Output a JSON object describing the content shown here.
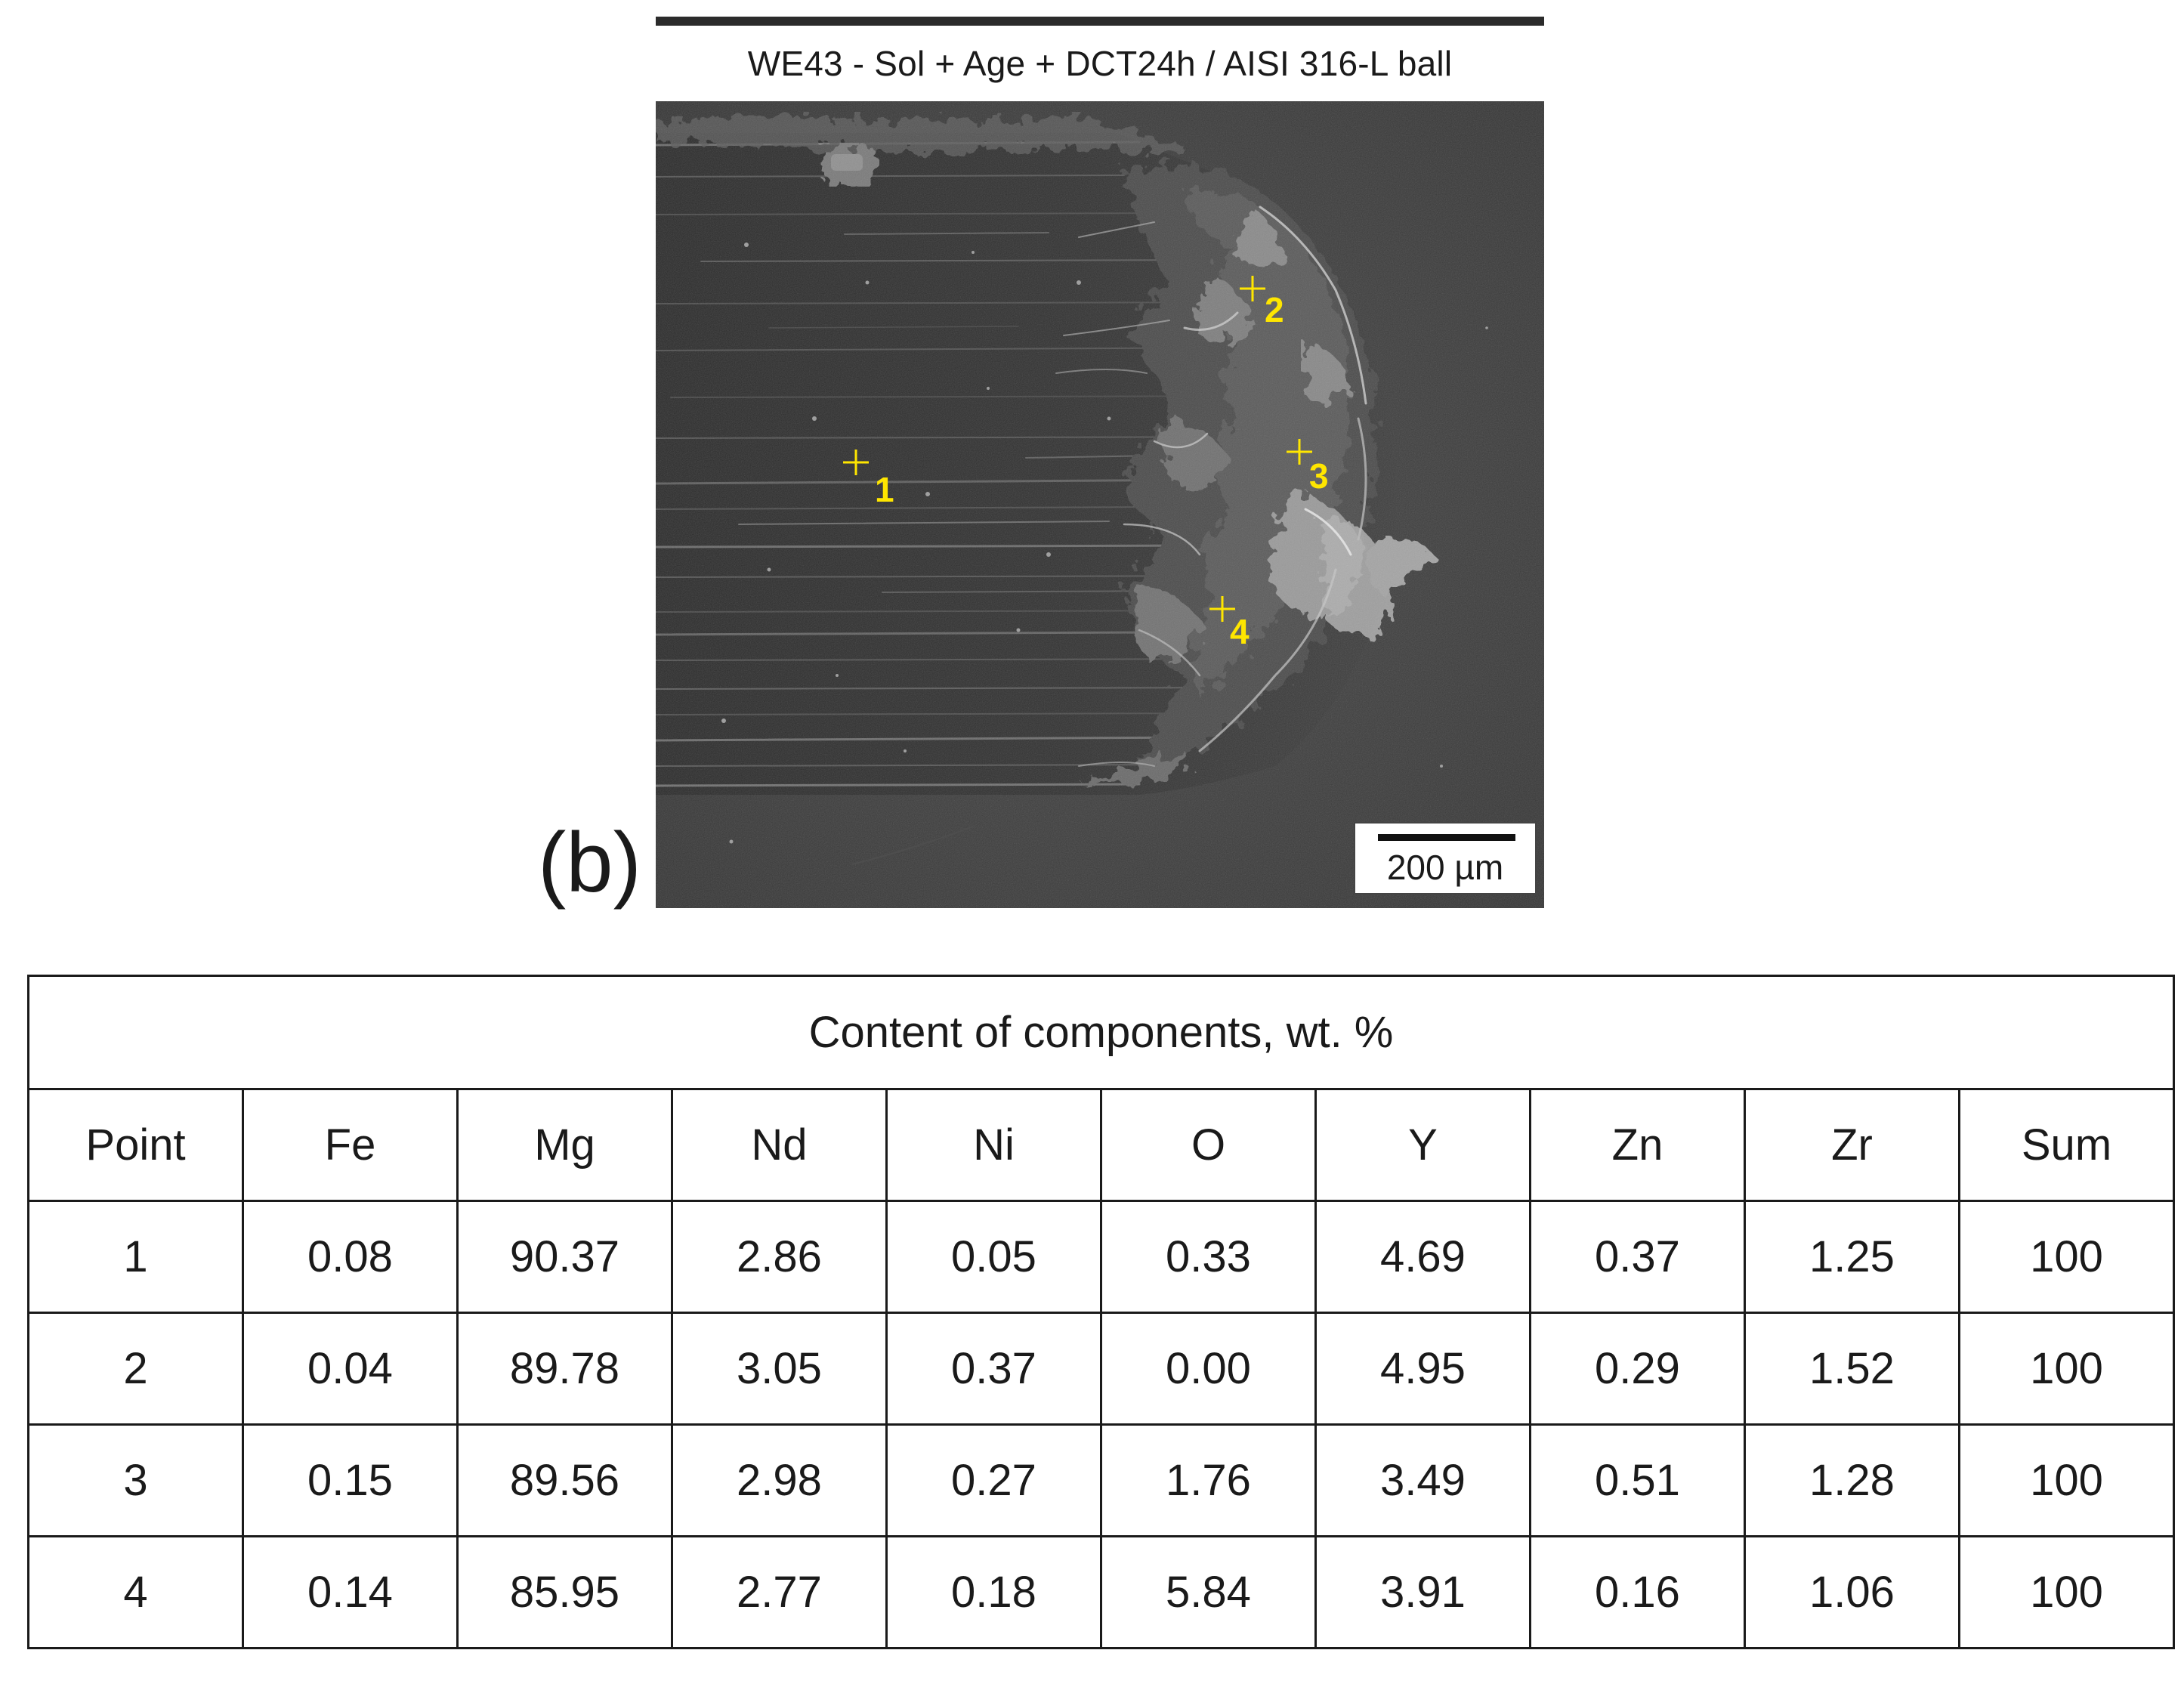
{
  "figure": {
    "caption": "WE43 - Sol + Age + DCT24h / AISI 316-L ball",
    "panel_label": "(b)",
    "scale_bar_label": "200 µm",
    "marker_color": "#ffe600",
    "points": [
      {
        "label": "1"
      },
      {
        "label": "2"
      },
      {
        "label": "3"
      },
      {
        "label": "4"
      }
    ]
  },
  "table": {
    "title": "Content of components, wt. %",
    "headers": [
      "Point",
      "Fe",
      "Mg",
      "Nd",
      "Ni",
      "O",
      "Y",
      "Zn",
      "Zr",
      "Sum"
    ],
    "rows": [
      [
        "1",
        "0.08",
        "90.37",
        "2.86",
        "0.05",
        "0.33",
        "4.69",
        "0.37",
        "1.25",
        "100"
      ],
      [
        "2",
        "0.04",
        "89.78",
        "3.05",
        "0.37",
        "0.00",
        "4.95",
        "0.29",
        "1.52",
        "100"
      ],
      [
        "3",
        "0.15",
        "89.56",
        "2.98",
        "0.27",
        "1.76",
        "3.49",
        "0.51",
        "1.28",
        "100"
      ],
      [
        "4",
        "0.14",
        "85.95",
        "2.77",
        "0.18",
        "5.84",
        "3.91",
        "0.16",
        "1.06",
        "100"
      ]
    ]
  }
}
